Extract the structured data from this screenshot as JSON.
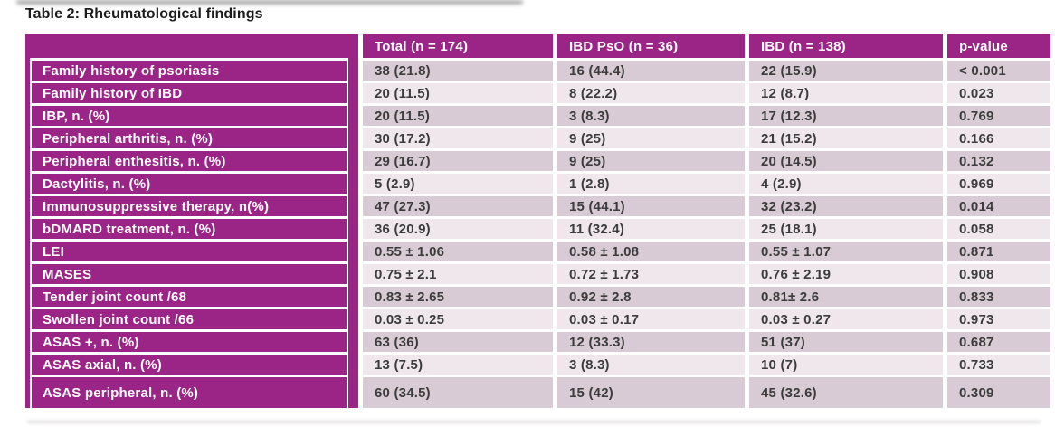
{
  "title": "Table 2: Rheumatological findings",
  "colors": {
    "accent_magenta": "#9a2586",
    "row_shade_dark": "#d8cbd6",
    "row_shade_light": "#efe7ec",
    "data_text": "#3c3c3c"
  },
  "table": {
    "headers": {
      "label": "",
      "total": "Total (n = 174)",
      "ibd_pso": "IBD PsO (n = 36)",
      "ibd": "IBD (n = 138)",
      "p_value": "p-value"
    },
    "rows": [
      {
        "label": "Family history of psoriasis",
        "total": "38 (21.8)",
        "ibd_pso": "16 (44.4)",
        "ibd": "22 (15.9)",
        "p_value": "< 0.001"
      },
      {
        "label": "Family history of IBD",
        "total": "20 (11.5)",
        "ibd_pso": "8 (22.2)",
        "ibd": "12 (8.7)",
        "p_value": "0.023"
      },
      {
        "label": "IBP, n. (%)",
        "total": "20 (11.5)",
        "ibd_pso": "3 (8.3)",
        "ibd": "17 (12.3)",
        "p_value": "0.769"
      },
      {
        "label": "Peripheral arthritis, n. (%)",
        "total": "30 (17.2)",
        "ibd_pso": "9 (25)",
        "ibd": "21 (15.2)",
        "p_value": "0.166"
      },
      {
        "label": "Peripheral enthesitis, n. (%)",
        "total": "29 (16.7)",
        "ibd_pso": "9 (25)",
        "ibd": "20 (14.5)",
        "p_value": "0.132"
      },
      {
        "label": "Dactylitis, n. (%)",
        "total": "5 (2.9)",
        "ibd_pso": "1 (2.8)",
        "ibd": "4 (2.9)",
        "p_value": "0.969"
      },
      {
        "label": "Immunosuppressive therapy, n(%)",
        "total": "47 (27.3)",
        "ibd_pso": "15 (44.1)",
        "ibd": "32 (23.2)",
        "p_value": "0.014"
      },
      {
        "label": "bDMARD treatment, n. (%)",
        "total": "36 (20.9)",
        "ibd_pso": "11 (32.4)",
        "ibd": "25 (18.1)",
        "p_value": "0.058"
      },
      {
        "label": "LEI",
        "total": "0.55 ± 1.06",
        "ibd_pso": "0.58 ± 1.08",
        "ibd": "0.55 ± 1.07",
        "p_value": "0.871"
      },
      {
        "label": "MASES",
        "total": "0.75 ± 2.1",
        "ibd_pso": "0.72 ± 1.73",
        "ibd": "0.76 ± 2.19",
        "p_value": "0.908"
      },
      {
        "label": "Tender joint count /68",
        "total": "0.83 ± 2.65",
        "ibd_pso": "0.92 ± 2.8",
        "ibd": "0.81± 2.6",
        "p_value": "0.833"
      },
      {
        "label": "Swollen joint count /66",
        "total": "0.03 ± 0.25",
        "ibd_pso": "0.03 ± 0.17",
        "ibd": "0.03 ± 0.27",
        "p_value": "0.973"
      },
      {
        "label": "ASAS +, n. (%)",
        "total": "63 (36)",
        "ibd_pso": "12 (33.3)",
        "ibd": "51 (37)",
        "p_value": "0.687"
      },
      {
        "label": "ASAS axial, n. (%)",
        "total": "13 (7.5)",
        "ibd_pso": "3 (8.3)",
        "ibd": "10 (7)",
        "p_value": "0.733"
      },
      {
        "label": "ASAS peripheral, n. (%)",
        "total": "60 (34.5)",
        "ibd_pso": "15 (42)",
        "ibd": "45 (32.6)",
        "p_value": "0.309"
      }
    ]
  }
}
